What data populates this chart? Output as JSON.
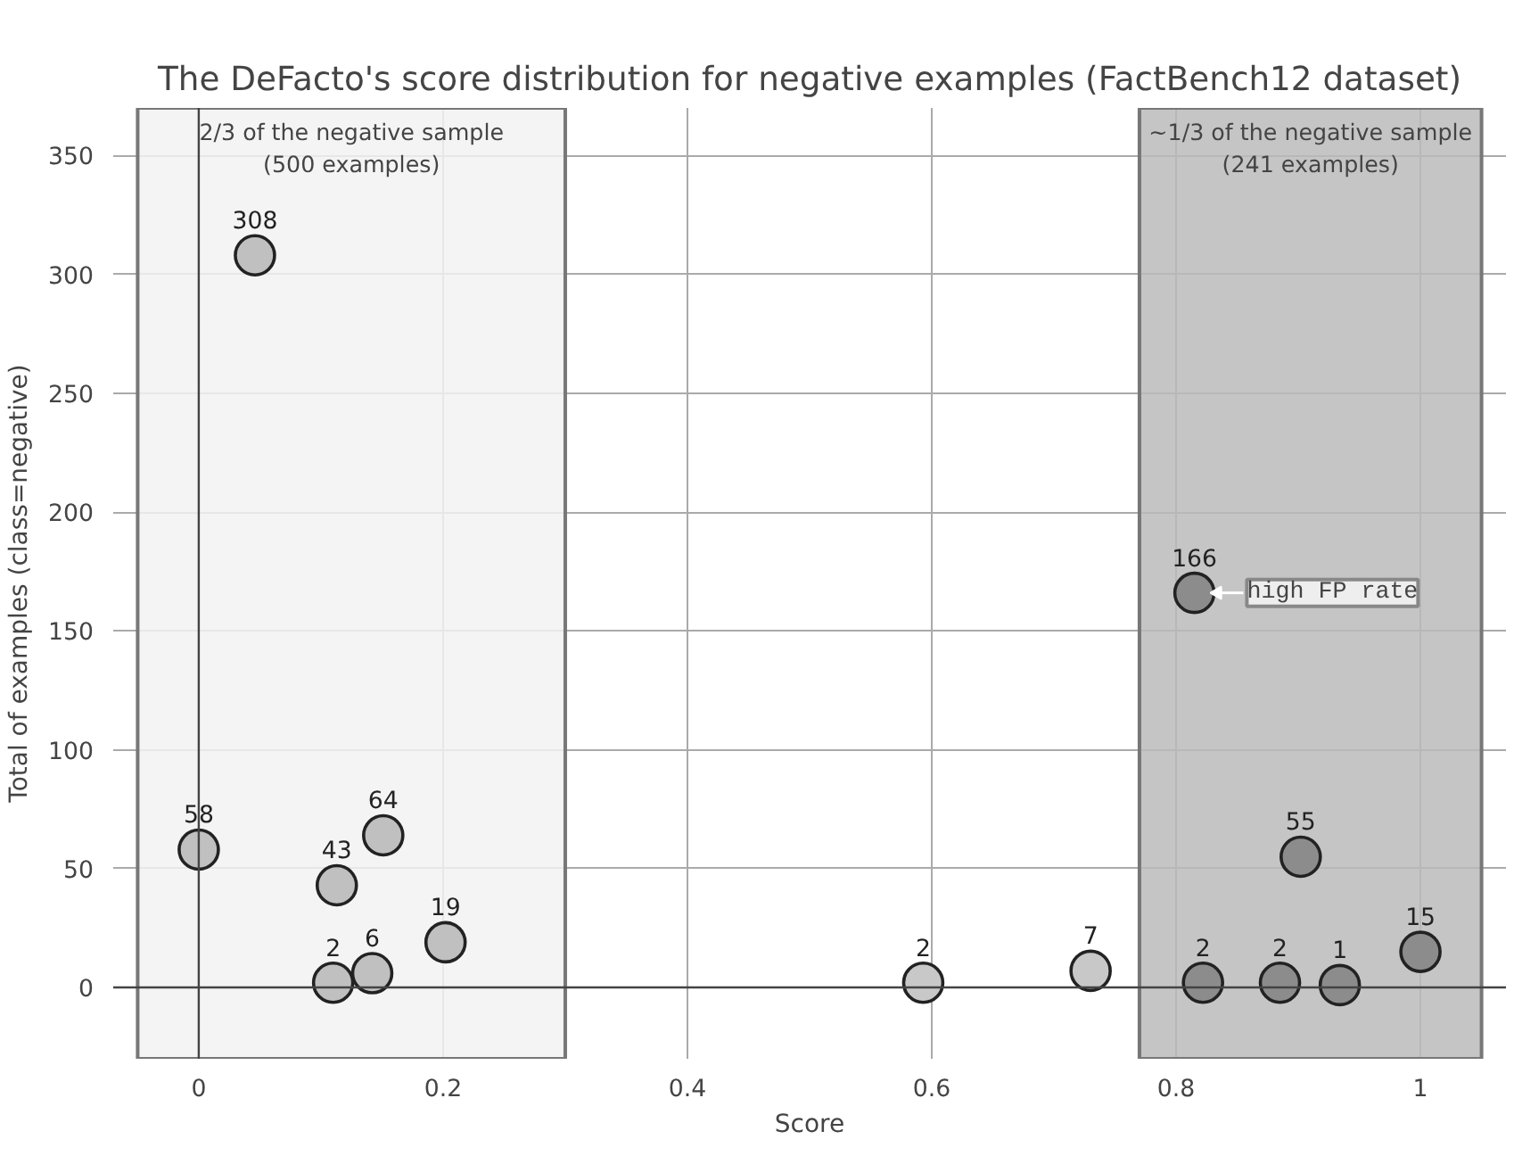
{
  "chart_data": {
    "type": "scatter",
    "title": "The DeFacto's score distribution for negative examples (FactBench12 dataset)",
    "xlabel": "Score",
    "ylabel": "Total of examples (class=negative)",
    "x": [
      0,
      0.046,
      0.11,
      0.113,
      0.142,
      0.151,
      0.202,
      0.593,
      0.73,
      0.822,
      0.885,
      0.934,
      0.902,
      1.0,
      0.815
    ],
    "values": [
      58,
      308,
      2,
      43,
      6,
      64,
      19,
      2,
      7,
      2,
      2,
      1,
      55,
      15,
      166
    ],
    "colors": [
      "#c0c0c0",
      "#c0c0c0",
      "#c0c0c0",
      "#c0c0c0",
      "#c0c0c0",
      "#c0c0c0",
      "#c0c0c0",
      "#c8c8c8",
      "#c8c8c8",
      "#8c8c8c",
      "#8c8c8c",
      "#8c8c8c",
      "#8c8c8c",
      "#8c8c8c",
      "#8c8c8c"
    ],
    "data_labels": true,
    "marker": "circle",
    "xlim": [
      -0.07,
      1.07
    ],
    "ylim": [
      -30,
      370
    ],
    "xticks": [
      0,
      0.2,
      0.4,
      0.6,
      0.8,
      1
    ],
    "yticks": [
      0,
      50,
      100,
      150,
      200,
      250,
      300,
      350
    ],
    "grid": true,
    "bands": [
      {
        "axis": "x",
        "from": -0.05,
        "to": 0.3,
        "color": "#f2f2f2",
        "label": "2/3 of the negative sample\n(500 examples)"
      },
      {
        "axis": "x",
        "from": 0.77,
        "to": 1.05,
        "color": "#bbbbbb",
        "label": "~1/3 of the negative sample\n(241 examples)"
      }
    ],
    "annotations": [
      {
        "text": "high FP rate",
        "x": 0.815,
        "y": 166
      }
    ]
  }
}
